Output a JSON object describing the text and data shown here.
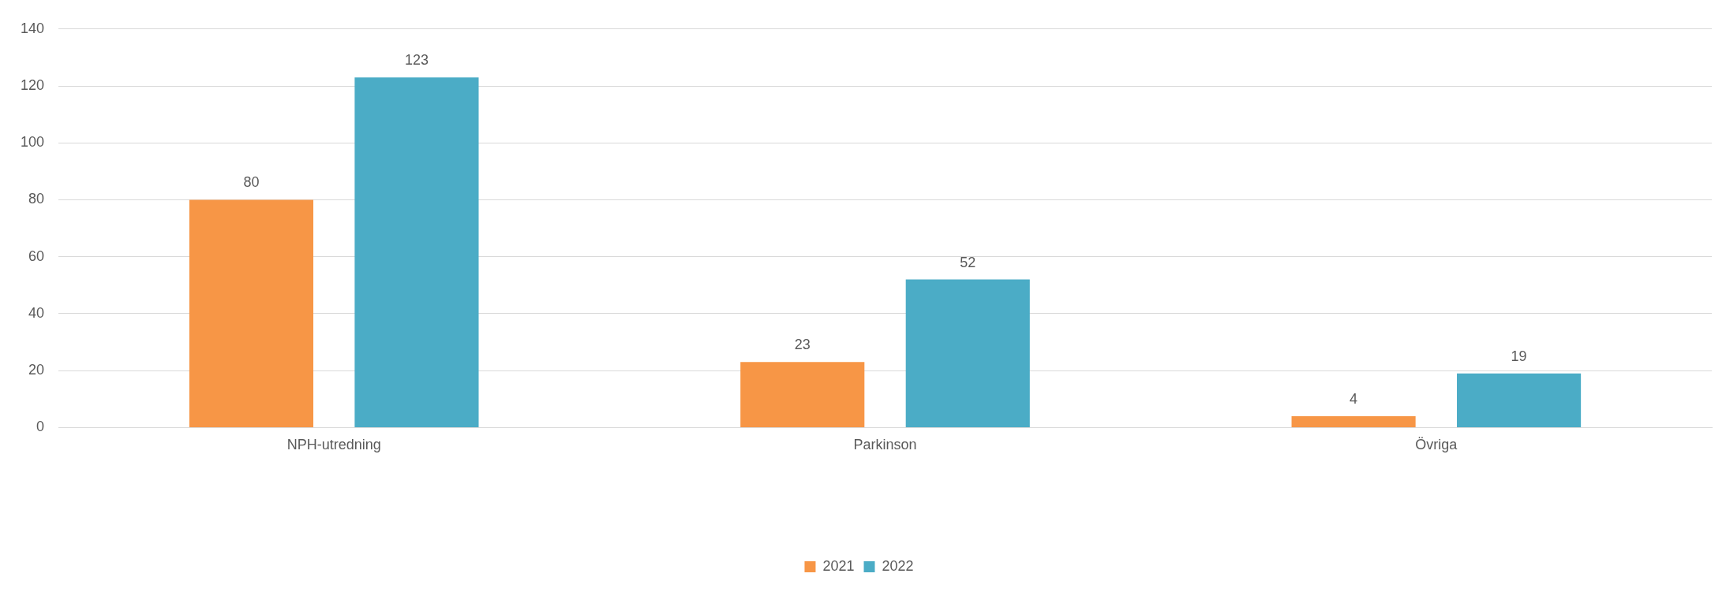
{
  "chart_data": {
    "type": "bar",
    "categories": [
      "NPH-utredning",
      "Parkinson",
      "Övriga"
    ],
    "series": [
      {
        "name": "2021",
        "color": "#f79646",
        "values": [
          80,
          23,
          4
        ]
      },
      {
        "name": "2022",
        "color": "#4bacc6",
        "values": [
          123,
          52,
          19
        ]
      }
    ],
    "ylim": [
      0,
      140
    ],
    "yticks": [
      0,
      20,
      40,
      60,
      80,
      100,
      120,
      140
    ],
    "grid": "y",
    "legend": "bottom",
    "data_labels": true
  }
}
